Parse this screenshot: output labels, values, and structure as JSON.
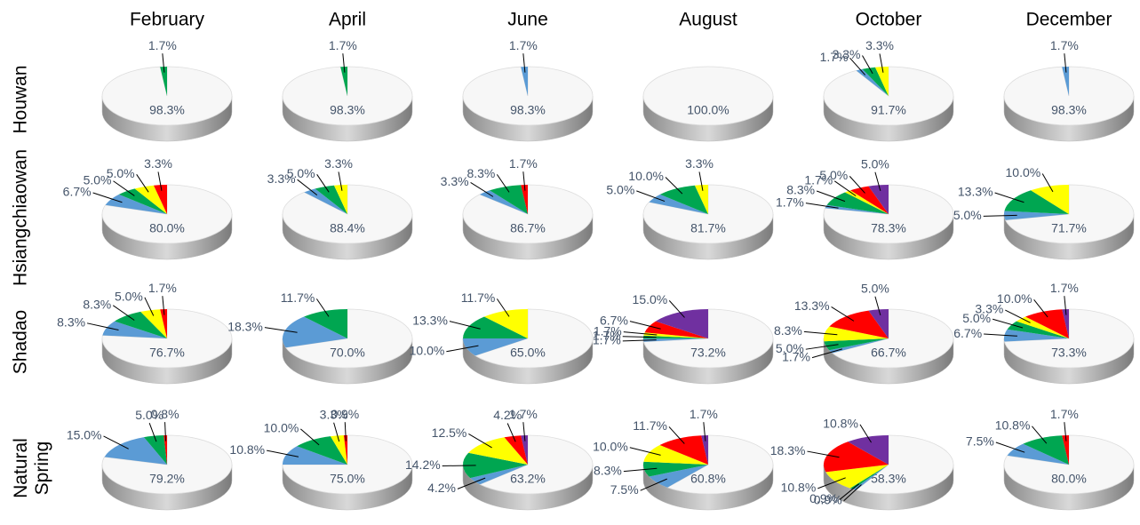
{
  "columns": [
    "February",
    "April",
    "June",
    "August",
    "October",
    "December"
  ],
  "rows": [
    "Houwan",
    "Hsiangchiaowan",
    "Shadao",
    "Natural Spring"
  ],
  "chart_data": [
    {
      "type": "pie",
      "values": [
        98.3,
        1.7
      ],
      "value_labels": [
        "98.3%",
        "1.7%"
      ],
      "colors": [
        "#f7f7f7",
        "#00a651"
      ]
    },
    {
      "type": "pie",
      "values": [
        98.3,
        1.7
      ],
      "value_labels": [
        "98.3%",
        "1.7%"
      ],
      "colors": [
        "#f7f7f7",
        "#00a651"
      ]
    },
    {
      "type": "pie",
      "values": [
        98.3,
        1.7
      ],
      "value_labels": [
        "98.3%",
        "1.7%"
      ],
      "colors": [
        "#f7f7f7",
        "#5b9bd5"
      ]
    },
    {
      "type": "pie",
      "values": [
        100.0
      ],
      "value_labels": [
        "100.0%"
      ],
      "colors": [
        "#f7f7f7"
      ]
    },
    {
      "type": "pie",
      "values": [
        91.7,
        1.7,
        3.3,
        3.3
      ],
      "value_labels": [
        "91.7%",
        "1.7%",
        "3.3%",
        "3.3%"
      ],
      "colors": [
        "#f7f7f7",
        "#5b9bd5",
        "#00a651",
        "#ffff00"
      ]
    },
    {
      "type": "pie",
      "values": [
        98.3,
        1.7
      ],
      "value_labels": [
        "98.3%",
        "1.7%"
      ],
      "colors": [
        "#f7f7f7",
        "#5b9bd5"
      ]
    },
    {
      "type": "pie",
      "values": [
        80.0,
        6.7,
        5.0,
        5.0,
        3.3
      ],
      "value_labels": [
        "80.0%",
        "6.7%",
        "5.0%",
        "5.0%",
        "3.3%"
      ],
      "colors": [
        "#f7f7f7",
        "#5b9bd5",
        "#00a651",
        "#ffff00",
        "#ff0000"
      ]
    },
    {
      "type": "pie",
      "values": [
        88.4,
        3.3,
        5.0,
        3.3
      ],
      "value_labels": [
        "88.4%",
        "3.3%",
        "5.0%",
        "3.3%"
      ],
      "colors": [
        "#f7f7f7",
        "#5b9bd5",
        "#00a651",
        "#ffff00"
      ]
    },
    {
      "type": "pie",
      "values": [
        86.7,
        3.3,
        8.3,
        1.7
      ],
      "value_labels": [
        "86.7%",
        "3.3%",
        "8.3%",
        "1.7%"
      ],
      "colors": [
        "#f7f7f7",
        "#5b9bd5",
        "#00a651",
        "#ff0000"
      ]
    },
    {
      "type": "pie",
      "values": [
        81.7,
        5.0,
        10.0,
        3.3
      ],
      "value_labels": [
        "81.7%",
        "5.0%",
        "10.0%",
        "3.3%"
      ],
      "colors": [
        "#f7f7f7",
        "#5b9bd5",
        "#00a651",
        "#ffff00"
      ]
    },
    {
      "type": "pie",
      "values": [
        78.3,
        1.7,
        8.3,
        1.7,
        5.0,
        5.0
      ],
      "value_labels": [
        "78.3%",
        "1.7%",
        "8.3%",
        "1.7%",
        "5.0%",
        "5.0%"
      ],
      "colors": [
        "#f7f7f7",
        "#5b9bd5",
        "#00a651",
        "#ffff00",
        "#ff0000",
        "#7030a0"
      ]
    },
    {
      "type": "pie",
      "values": [
        71.7,
        5.0,
        13.3,
        10.0
      ],
      "value_labels": [
        "71.7%",
        "5.0%",
        "13.3%",
        "10.0%"
      ],
      "colors": [
        "#f7f7f7",
        "#5b9bd5",
        "#00a651",
        "#ffff00"
      ]
    },
    {
      "type": "pie",
      "values": [
        76.7,
        8.3,
        8.3,
        5.0,
        1.7
      ],
      "value_labels": [
        "76.7%",
        "8.3%",
        "8.3%",
        "5.0%",
        "1.7%"
      ],
      "colors": [
        "#f7f7f7",
        "#5b9bd5",
        "#00a651",
        "#ffff00",
        "#ff0000"
      ]
    },
    {
      "type": "pie",
      "values": [
        70.0,
        18.3,
        11.7
      ],
      "value_labels": [
        "70.0%",
        "18.3%",
        "11.7%"
      ],
      "colors": [
        "#f7f7f7",
        "#5b9bd5",
        "#00a651"
      ]
    },
    {
      "type": "pie",
      "values": [
        65.0,
        10.0,
        13.3,
        11.7
      ],
      "value_labels": [
        "65.0%",
        "10.0%",
        "13.3%",
        "11.7%"
      ],
      "colors": [
        "#f7f7f7",
        "#5b9bd5",
        "#00a651",
        "#ffff00"
      ]
    },
    {
      "type": "pie",
      "values": [
        73.2,
        1.7,
        1.7,
        1.7,
        6.7,
        15.0
      ],
      "value_labels": [
        "73.2%",
        "1.7%",
        "1.7%",
        "1.7%",
        "6.7%",
        "15.0%"
      ],
      "colors": [
        "#f7f7f7",
        "#5b9bd5",
        "#00a651",
        "#ffff00",
        "#ff0000",
        "#7030a0"
      ]
    },
    {
      "type": "pie",
      "values": [
        66.7,
        1.7,
        5.0,
        8.3,
        13.3,
        5.0
      ],
      "value_labels": [
        "66.7%",
        "1.7%",
        "5.0%",
        "8.3%",
        "13.3%",
        "5.0%"
      ],
      "colors": [
        "#f7f7f7",
        "#5b9bd5",
        "#00a651",
        "#ffff00",
        "#ff0000",
        "#7030a0"
      ]
    },
    {
      "type": "pie",
      "values": [
        73.3,
        6.7,
        5.0,
        3.3,
        10.0,
        1.7
      ],
      "value_labels": [
        "73.3%",
        "6.7%",
        "5.0%",
        "3.3%",
        "10.0%",
        "1.7%"
      ],
      "colors": [
        "#f7f7f7",
        "#5b9bd5",
        "#00a651",
        "#ffff00",
        "#ff0000",
        "#7030a0"
      ]
    },
    {
      "type": "pie",
      "values": [
        79.2,
        15.0,
        5.0,
        0.8
      ],
      "value_labels": [
        "79.2%",
        "15.0%",
        "5.0%",
        "0.8%"
      ],
      "colors": [
        "#f7f7f7",
        "#5b9bd5",
        "#00a651",
        "#ff0000"
      ]
    },
    {
      "type": "pie",
      "values": [
        75.0,
        10.8,
        10.0,
        3.3,
        0.9
      ],
      "value_labels": [
        "75.0%",
        "10.8%",
        "10.0%",
        "3.3%",
        "0.9%"
      ],
      "colors": [
        "#f7f7f7",
        "#5b9bd5",
        "#00a651",
        "#ffff00",
        "#ff0000"
      ]
    },
    {
      "type": "pie",
      "values": [
        63.2,
        4.2,
        14.2,
        12.5,
        4.2,
        1.7
      ],
      "value_labels": [
        "63.2%",
        "4.2%",
        "14.2%",
        "12.5%",
        "4.2%",
        "1.7%"
      ],
      "colors": [
        "#f7f7f7",
        "#5b9bd5",
        "#00a651",
        "#ffff00",
        "#ff0000",
        "#7030a0"
      ]
    },
    {
      "type": "pie",
      "values": [
        60.8,
        7.5,
        8.3,
        10.0,
        11.7,
        1.7
      ],
      "value_labels": [
        "60.8%",
        "7.5%",
        "8.3%",
        "10.0%",
        "11.7%",
        "1.7%"
      ],
      "colors": [
        "#f7f7f7",
        "#5b9bd5",
        "#00a651",
        "#ffff00",
        "#ff0000",
        "#7030a0"
      ]
    },
    {
      "type": "pie",
      "values": [
        58.3,
        0.9,
        0.9,
        10.8,
        18.3,
        10.8
      ],
      "value_labels": [
        "58.3%",
        "0.9%",
        "0.9%",
        "10.8%",
        "18.3%",
        "10.8%"
      ],
      "colors": [
        "#f7f7f7",
        "#5b9bd5",
        "#00a651",
        "#ffff00",
        "#ff0000",
        "#7030a0"
      ]
    },
    {
      "type": "pie",
      "values": [
        80.0,
        7.5,
        10.8,
        1.7
      ],
      "value_labels": [
        "80.0%",
        "7.5%",
        "10.8%",
        "1.7%"
      ],
      "colors": [
        "#f7f7f7",
        "#5b9bd5",
        "#00a651",
        "#ff0000"
      ]
    }
  ]
}
